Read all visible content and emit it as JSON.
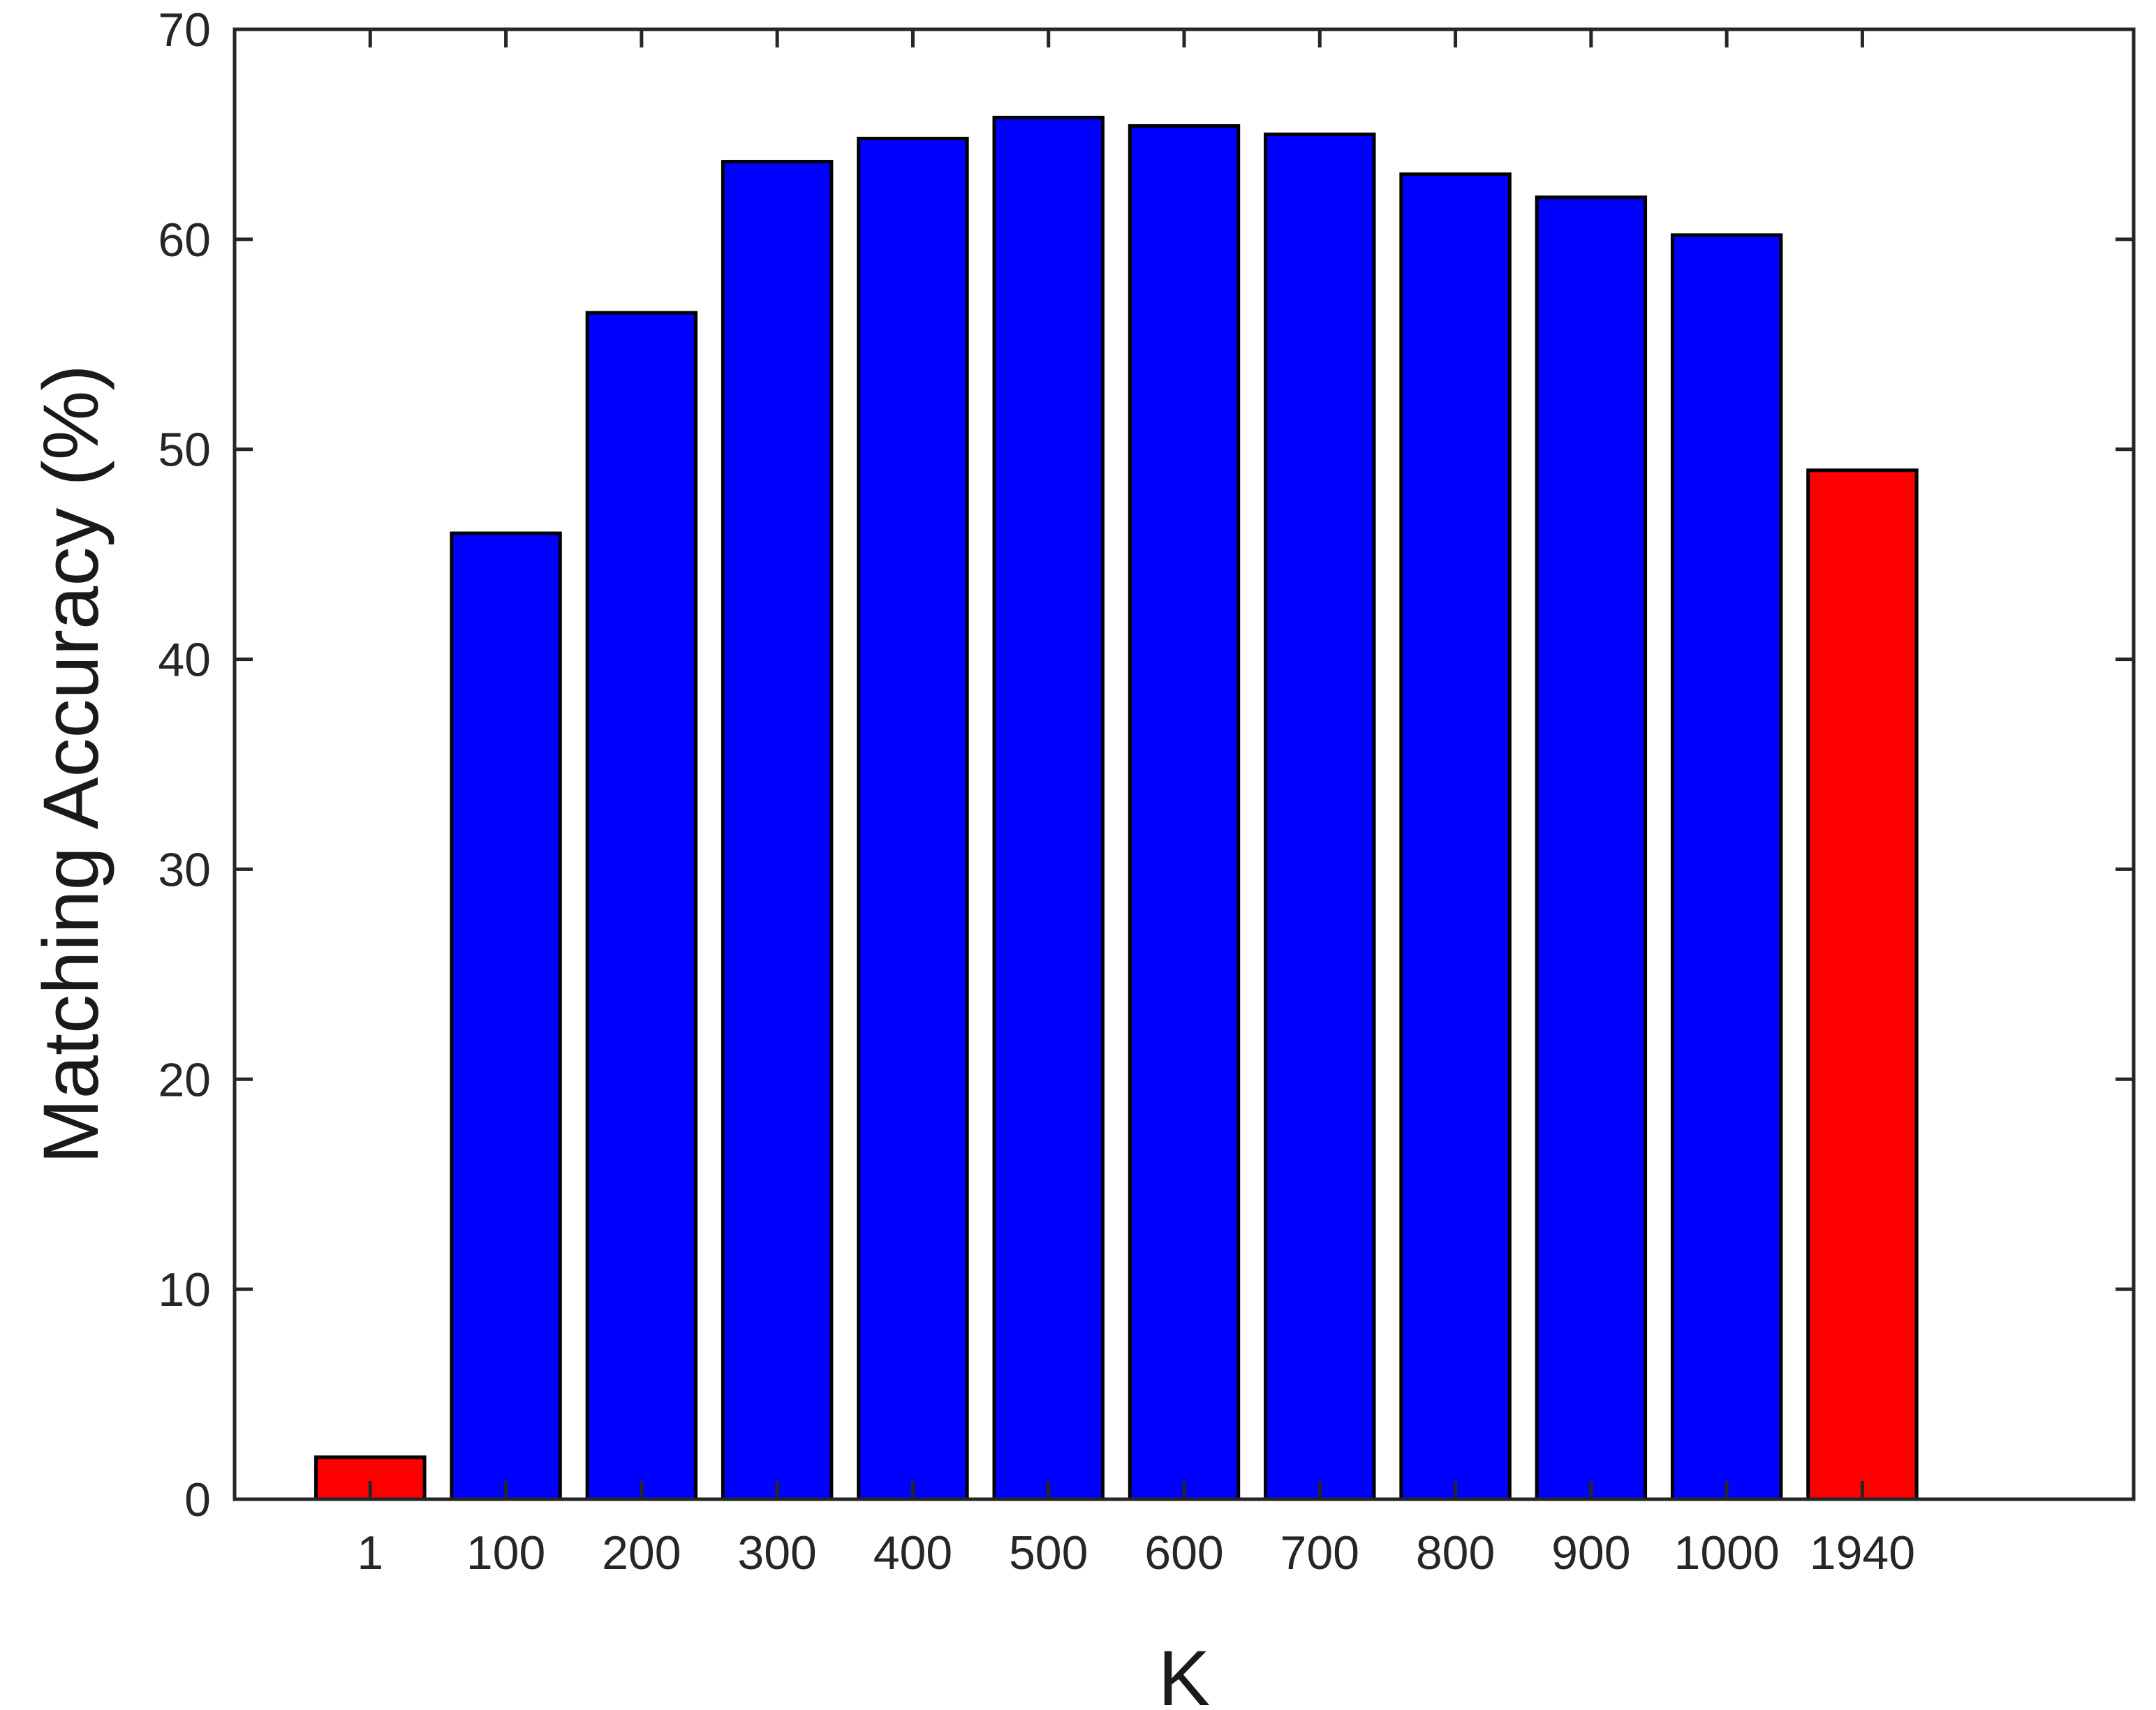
{
  "chart_data": {
    "type": "bar",
    "title": "",
    "xlabel": "K",
    "ylabel": "Matching Accuracy (%)",
    "categories": [
      "1",
      "100",
      "200",
      "300",
      "400",
      "500",
      "600",
      "700",
      "800",
      "900",
      "1000",
      "1940"
    ],
    "values": [
      2.0,
      46.0,
      56.5,
      63.7,
      64.8,
      65.8,
      65.4,
      65.0,
      63.1,
      62.0,
      60.2,
      49.0
    ],
    "bar_colors": [
      "#ff0000",
      "#0000ff",
      "#0000ff",
      "#0000ff",
      "#0000ff",
      "#0000ff",
      "#0000ff",
      "#0000ff",
      "#0000ff",
      "#0000ff",
      "#0000ff",
      "#ff0000"
    ],
    "ylim": [
      0,
      70
    ],
    "yticks": [
      "0",
      "10",
      "20",
      "30",
      "40",
      "50",
      "60",
      "70"
    ],
    "x_slots": 14,
    "grid": false,
    "legend": "none"
  }
}
